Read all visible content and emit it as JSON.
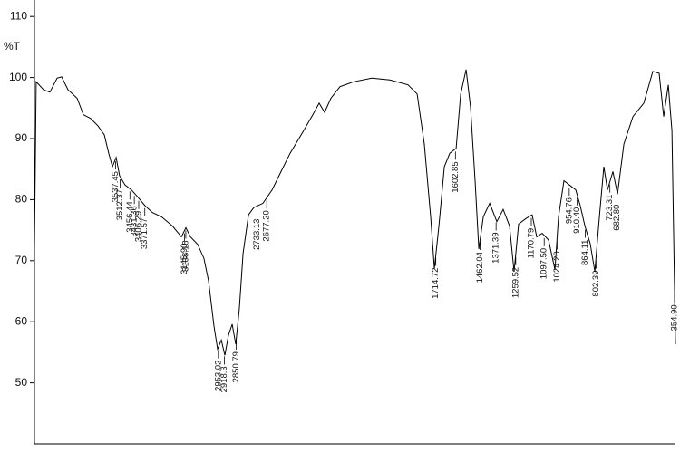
{
  "chart_data": {
    "type": "line",
    "y_label": "%T",
    "xlim": [
      4000,
      350
    ],
    "ylim": [
      40,
      112.7
    ],
    "yticks": [
      50,
      60,
      70,
      80,
      90,
      100,
      110
    ],
    "x": [
      4000,
      3990,
      3948,
      3912,
      3871,
      3845,
      3809,
      3757,
      3721,
      3680,
      3639,
      3602,
      3577,
      3556,
      3535,
      3515,
      3484,
      3448,
      3411,
      3370,
      3329,
      3277,
      3215,
      3163,
      3138,
      3112,
      3071,
      3035,
      3009,
      2978,
      2957,
      2936,
      2916,
      2895,
      2874,
      2854,
      2833,
      2812,
      2781,
      2751,
      2699,
      2647,
      2596,
      2544,
      2467,
      2415,
      2379,
      2348,
      2312,
      2260,
      2183,
      2079,
      1976,
      1873,
      1821,
      1780,
      1744,
      1723,
      1697,
      1666,
      1635,
      1599,
      1573,
      1542,
      1517,
      1491,
      1470,
      1444,
      1408,
      1367,
      1331,
      1295,
      1269,
      1243,
      1202,
      1166,
      1140,
      1109,
      1073,
      1036,
      1016,
      985,
      954,
      918,
      892,
      866,
      835,
      809,
      783,
      758,
      737,
      706,
      680,
      644,
      592,
      530,
      479,
      443,
      417,
      391,
      370,
      350
    ],
    "series": [
      {
        "color": "#000000",
        "values": [
          72,
          99.3,
          98,
          97.6,
          99.9,
          100.1,
          98,
          96.6,
          93.9,
          93.3,
          92.1,
          90.6,
          87.6,
          85.4,
          86.9,
          83.9,
          82.4,
          81.6,
          80.4,
          79,
          77.9,
          77.2,
          75.7,
          73.9,
          75.4,
          73.9,
          72.7,
          70.4,
          66.7,
          59.3,
          55.5,
          57,
          54.5,
          57.8,
          59.6,
          56.3,
          62.2,
          71.2,
          77.5,
          78.7,
          79.4,
          81.6,
          84.6,
          87.6,
          91.3,
          93.9,
          95.8,
          94.3,
          96.6,
          98.5,
          99.3,
          99.9,
          99.6,
          98.8,
          97.3,
          89.1,
          77.2,
          68.7,
          75.7,
          85.4,
          87.6,
          88.4,
          97.3,
          101.3,
          95.1,
          83.1,
          71.9,
          77.2,
          79.4,
          76.4,
          78.4,
          75.7,
          68.2,
          76,
          76.9,
          77.5,
          73.9,
          74.5,
          73.4,
          68.5,
          77.2,
          83.1,
          82.4,
          81.6,
          79,
          75.7,
          72.7,
          68.2,
          77.2,
          85.4,
          81.6,
          84.6,
          80.9,
          89.1,
          93.6,
          95.8,
          101,
          100.7,
          93.6,
          98.8,
          91.3,
          56.3
        ]
      }
    ],
    "peak_labels": [
      3537.45,
      3512.37,
      3456.44,
      3431.36,
      {
        "value": 3406.29,
        "label": "3406.29"
      },
      3371.57,
      {
        "value": 3145.9,
        "label": "3145.90"
      },
      3138.18,
      2953.02,
      2918.3,
      2850.79,
      2733.13,
      {
        "value": 2677.2,
        "label": "2677.20"
      },
      1714.72,
      1602.85,
      1462.04,
      1371.39,
      1259.52,
      1170.79,
      {
        "value": 1097.5,
        "label": "1097.50"
      },
      {
        "value": 1024.2,
        "label": "1024.20"
      },
      954.76,
      {
        "value": 910.4,
        "label": "910.40"
      },
      864.11,
      802.39,
      723.31,
      {
        "value": 682.8,
        "label": "682.80"
      },
      {
        "value": 354.9,
        "label": "354.90"
      }
    ]
  }
}
